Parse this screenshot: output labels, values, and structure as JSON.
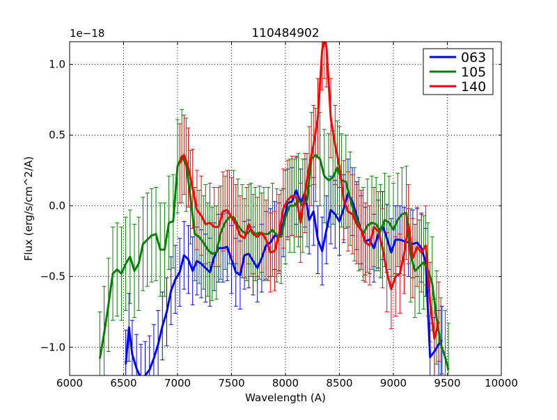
{
  "chart_data": {
    "type": "line",
    "title": "110484902",
    "xlabel": "Wavelength (A)",
    "ylabel": "Flux (erg/s/cm^2/A)",
    "offset_label": "1e−18",
    "xlim": [
      6000,
      10000
    ],
    "ylim": [
      -1.2,
      1.16
    ],
    "x_ticks": [
      6000,
      6500,
      7000,
      7500,
      8000,
      8500,
      9000,
      9500,
      10000
    ],
    "x_tick_labels": [
      "6000",
      "6500",
      "7000",
      "7500",
      "8000",
      "8500",
      "9000",
      "9500",
      "10000"
    ],
    "y_ticks": [
      -1.0,
      -0.5,
      0.0,
      0.5,
      1.0
    ],
    "y_tick_labels": [
      "−1.0",
      "−0.5",
      "0.0",
      "0.5",
      "1.0"
    ],
    "grid": true,
    "grid_style": "dotted",
    "legend_position": "top-right",
    "series": [
      {
        "name": "063",
        "color": "#0000ff",
        "x": [
          6520,
          6550,
          6580,
          6620,
          6660,
          6700,
          6740,
          6780,
          6820,
          6860,
          6900,
          6940,
          6980,
          7020,
          7060,
          7100,
          7140,
          7180,
          7220,
          7260,
          7300,
          7340,
          7380,
          7420,
          7460,
          7500,
          7540,
          7580,
          7620,
          7660,
          7700,
          7740,
          7780,
          7820,
          7860,
          7900,
          7940,
          7980,
          8020,
          8060,
          8100,
          8140,
          8180,
          8220,
          8260,
          8300,
          8340,
          8380,
          8420,
          8460,
          8500,
          8540,
          8580,
          8620,
          8660,
          8700,
          8740,
          8780,
          8820,
          8860,
          8900,
          8940,
          8980,
          9020,
          9060,
          9100,
          9140,
          9180,
          9220,
          9260,
          9300,
          9340,
          9380,
          9420,
          9450
        ],
        "y": [
          -1.12,
          -0.86,
          -1.05,
          -1.15,
          -1.22,
          -1.2,
          -1.16,
          -1.08,
          -0.98,
          -0.85,
          -0.75,
          -0.6,
          -0.52,
          -0.47,
          -0.35,
          -0.38,
          -0.46,
          -0.39,
          -0.41,
          -0.44,
          -0.47,
          -0.36,
          -0.3,
          -0.3,
          -0.29,
          -0.38,
          -0.47,
          -0.49,
          -0.35,
          -0.34,
          -0.39,
          -0.44,
          -0.37,
          -0.28,
          -0.26,
          -0.21,
          -0.22,
          -0.12,
          0.02,
          0.03,
          0.11,
          0.02,
          0.09,
          -0.1,
          -0.04,
          -0.24,
          -0.32,
          -0.17,
          -0.03,
          -0.06,
          -0.11,
          -0.02,
          0.09,
          0.03,
          -0.07,
          -0.17,
          -0.25,
          -0.24,
          -0.3,
          -0.2,
          -0.14,
          -0.23,
          -0.33,
          -0.24,
          -0.24,
          -0.25,
          -0.26,
          -0.27,
          -0.26,
          -0.3,
          -0.4,
          -1.07,
          -1.03,
          -0.98,
          -0.95
        ],
        "err": [
          0.24,
          0.24,
          0.24,
          0.24,
          0.24,
          0.24,
          0.24,
          0.24,
          0.24,
          0.24,
          0.24,
          0.24,
          0.24,
          0.24,
          0.24,
          0.24,
          0.24,
          0.24,
          0.24,
          0.24,
          0.24,
          0.24,
          0.24,
          0.24,
          0.24,
          0.24,
          0.24,
          0.24,
          0.24,
          0.24,
          0.24,
          0.24,
          0.24,
          0.24,
          0.24,
          0.24,
          0.24,
          0.24,
          0.24,
          0.24,
          0.24,
          0.24,
          0.24,
          0.24,
          0.24,
          0.24,
          0.24,
          0.24,
          0.24,
          0.24,
          0.24,
          0.24,
          0.24,
          0.24,
          0.24,
          0.24,
          0.24,
          0.24,
          0.24,
          0.24,
          0.24,
          0.24,
          0.24,
          0.24,
          0.24,
          0.24,
          0.24,
          0.24,
          0.24,
          0.24,
          0.24,
          0.24,
          0.24,
          0.24,
          0.24
        ]
      },
      {
        "name": "105",
        "color": "#008000",
        "x": [
          6280,
          6320,
          6360,
          6400,
          6440,
          6480,
          6520,
          6560,
          6600,
          6640,
          6680,
          6720,
          6760,
          6800,
          6840,
          6880,
          6920,
          6960,
          7000,
          7040,
          7080,
          7120,
          7160,
          7200,
          7240,
          7280,
          7320,
          7360,
          7400,
          7440,
          7480,
          7520,
          7560,
          7600,
          7640,
          7680,
          7720,
          7760,
          7800,
          7840,
          7880,
          7920,
          7960,
          8000,
          8040,
          8080,
          8120,
          8160,
          8200,
          8240,
          8280,
          8320,
          8360,
          8400,
          8440,
          8480,
          8520,
          8560,
          8600,
          8640,
          8680,
          8720,
          8760,
          8800,
          8840,
          8880,
          8920,
          8960,
          9000,
          9040,
          9080,
          9120,
          9160,
          9200,
          9240,
          9280,
          9320,
          9360,
          9400,
          9440,
          9480,
          9510
        ],
        "y": [
          -1.08,
          -0.9,
          -0.7,
          -0.48,
          -0.45,
          -0.48,
          -0.41,
          -0.36,
          -0.46,
          -0.41,
          -0.27,
          -0.24,
          -0.21,
          -0.2,
          -0.31,
          -0.31,
          -0.12,
          -0.11,
          0.28,
          0.35,
          0.29,
          0.06,
          -0.2,
          -0.22,
          -0.26,
          -0.31,
          -0.34,
          -0.33,
          -0.19,
          -0.12,
          -0.08,
          -0.08,
          -0.14,
          -0.18,
          -0.2,
          -0.17,
          -0.2,
          -0.19,
          -0.2,
          -0.2,
          -0.17,
          -0.21,
          -0.22,
          -0.08,
          0.0,
          0.0,
          0.04,
          0.0,
          0.04,
          0.33,
          0.36,
          0.33,
          0.21,
          0.18,
          0.2,
          0.27,
          0.18,
          0.17,
          0.05,
          -0.06,
          -0.13,
          -0.2,
          -0.14,
          -0.12,
          -0.13,
          -0.18,
          -0.1,
          -0.12,
          -0.17,
          -0.1,
          -0.06,
          -0.05,
          -0.35,
          -0.46,
          -0.43,
          -0.4,
          -0.45,
          -0.55,
          -0.79,
          -0.98,
          -1.07,
          -1.16
        ],
        "err": [
          0.33,
          0.33,
          0.33,
          0.33,
          0.33,
          0.33,
          0.33,
          0.33,
          0.33,
          0.33,
          0.33,
          0.33,
          0.33,
          0.33,
          0.33,
          0.33,
          0.33,
          0.33,
          0.33,
          0.33,
          0.33,
          0.33,
          0.33,
          0.33,
          0.33,
          0.33,
          0.33,
          0.33,
          0.33,
          0.33,
          0.33,
          0.33,
          0.33,
          0.33,
          0.33,
          0.33,
          0.33,
          0.33,
          0.33,
          0.33,
          0.33,
          0.33,
          0.33,
          0.33,
          0.33,
          0.33,
          0.33,
          0.33,
          0.33,
          0.33,
          0.33,
          0.33,
          0.33,
          0.33,
          0.33,
          0.33,
          0.33,
          0.33,
          0.33,
          0.33,
          0.33,
          0.33,
          0.33,
          0.33,
          0.33,
          0.33,
          0.33,
          0.33,
          0.33,
          0.33,
          0.33,
          0.33,
          0.33,
          0.33,
          0.33,
          0.33,
          0.33,
          0.33,
          0.33,
          0.33,
          0.33,
          0.33
        ]
      },
      {
        "name": "140",
        "color": "#ff0000",
        "x": [
          7020,
          7060,
          7100,
          7140,
          7180,
          7220,
          7260,
          7300,
          7340,
          7380,
          7420,
          7460,
          7500,
          7540,
          7580,
          7620,
          7660,
          7700,
          7740,
          7780,
          7820,
          7860,
          7900,
          7940,
          7980,
          8020,
          8060,
          8100,
          8140,
          8180,
          8220,
          8260,
          8300,
          8340,
          8360,
          8380,
          8420,
          8460,
          8500,
          8540,
          8580,
          8620,
          8660,
          8700,
          8740,
          8780,
          8820,
          8860,
          8900,
          8940,
          8980,
          9020,
          9060,
          9100,
          9140,
          9180,
          9220,
          9260,
          9300,
          9340,
          9380,
          9420
        ],
        "y": [
          0.3,
          0.36,
          0.27,
          0.12,
          -0.03,
          -0.07,
          -0.13,
          -0.12,
          -0.15,
          -0.15,
          -0.04,
          -0.03,
          -0.08,
          -0.13,
          -0.21,
          -0.23,
          -0.13,
          -0.2,
          -0.22,
          -0.19,
          -0.24,
          -0.33,
          -0.32,
          -0.2,
          -0.02,
          0.04,
          0.07,
          0.06,
          -0.12,
          0.09,
          0.28,
          0.43,
          0.62,
          1.1,
          1.18,
          1.12,
          0.62,
          0.43,
          0.28,
          0.04,
          -0.04,
          -0.06,
          -0.13,
          -0.17,
          -0.26,
          -0.28,
          -0.15,
          -0.18,
          -0.3,
          -0.47,
          -0.59,
          -0.5,
          -0.48,
          -0.34,
          -0.13,
          -0.37,
          -0.29,
          -0.33,
          -0.28,
          -0.68,
          -0.94,
          -0.82
        ],
        "err": [
          0.28,
          0.28,
          0.28,
          0.28,
          0.28,
          0.28,
          0.28,
          0.28,
          0.28,
          0.28,
          0.28,
          0.28,
          0.28,
          0.28,
          0.28,
          0.28,
          0.28,
          0.28,
          0.28,
          0.28,
          0.28,
          0.28,
          0.28,
          0.28,
          0.28,
          0.28,
          0.28,
          0.28,
          0.28,
          0.28,
          0.28,
          0.28,
          0.28,
          0.28,
          0.28,
          0.28,
          0.28,
          0.28,
          0.28,
          0.28,
          0.28,
          0.28,
          0.28,
          0.28,
          0.28,
          0.28,
          0.28,
          0.28,
          0.28,
          0.28,
          0.28,
          0.28,
          0.28,
          0.28,
          0.28,
          0.28,
          0.28,
          0.28,
          0.28,
          0.28,
          0.28,
          0.28
        ]
      }
    ]
  }
}
